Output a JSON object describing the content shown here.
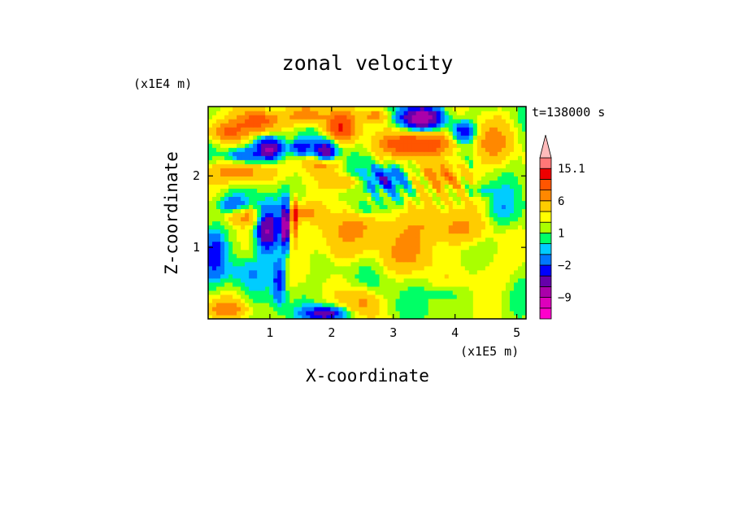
{
  "chart_data": {
    "type": "heatmap",
    "title": "zonal velocity",
    "xlabel": "X-coordinate",
    "ylabel": "Z-coordinate",
    "x_scale_label": "(x1E5 m)",
    "y_scale_label": "(x1E4 m)",
    "time_label": "t=138000 s",
    "xlim": [
      0,
      5.15
    ],
    "ylim": [
      0,
      2.97
    ],
    "x_ticks": [
      1,
      2,
      3,
      4,
      5
    ],
    "y_ticks": [
      1,
      2
    ],
    "colorbar": {
      "levels": [
        -15.1,
        -12,
        -9,
        -6,
        -4,
        -2,
        -1,
        0,
        1,
        2,
        4,
        6,
        9,
        12,
        15.1
      ],
      "colors": [
        "#ff00cc",
        "#dd00bb",
        "#aa00aa",
        "#6600aa",
        "#0000ff",
        "#0077ff",
        "#00ccff",
        "#00ff66",
        "#aaff00",
        "#ffff00",
        "#ffcc00",
        "#ff8800",
        "#ff5500",
        "#ee0000",
        "#ff7777",
        "#ffbbbb"
      ],
      "labels": [
        {
          "value": -9,
          "text": "−9"
        },
        {
          "value": -2,
          "text": "−2"
        },
        {
          "value": 1,
          "text": "1"
        },
        {
          "value": 6,
          "text": "6"
        },
        {
          "value": 15.1,
          "text": "15.1"
        }
      ]
    }
  }
}
